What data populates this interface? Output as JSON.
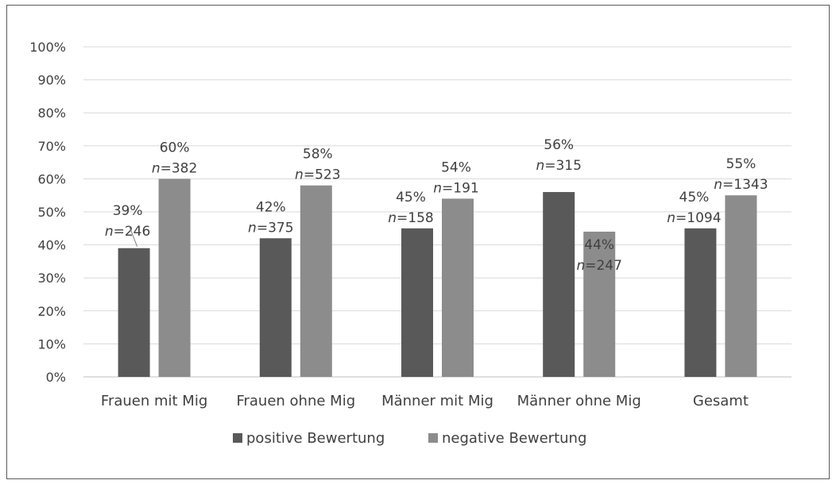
{
  "chart_data": {
    "type": "bar",
    "categories": [
      "Frauen mit Mig",
      "Frauen ohne Mig",
      "Männer mit Mig",
      "Männer ohne Mig",
      "Gesamt"
    ],
    "series": [
      {
        "name": "positive Bewertung",
        "color": "#595959",
        "values": [
          39,
          42,
          45,
          56,
          45
        ],
        "n": [
          "246",
          "375",
          "158",
          "315",
          "1094"
        ],
        "labels": [
          "39%",
          "42%",
          "45%",
          "56%",
          "45%"
        ]
      },
      {
        "name": "negative Bewertung",
        "color": "#8c8c8c",
        "values": [
          60,
          58,
          54,
          44,
          55
        ],
        "n": [
          "382",
          "523",
          "191",
          "247",
          "1343"
        ],
        "labels": [
          "60%",
          "58%",
          "54%",
          "44%",
          "55%"
        ]
      }
    ],
    "n_prefix": "n",
    "ylim": [
      0,
      100
    ],
    "yticks": [
      "0%",
      "10%",
      "20%",
      "30%",
      "40%",
      "50%",
      "60%",
      "70%",
      "80%",
      "90%",
      "100%"
    ],
    "grid": true,
    "legend": "bottom"
  }
}
